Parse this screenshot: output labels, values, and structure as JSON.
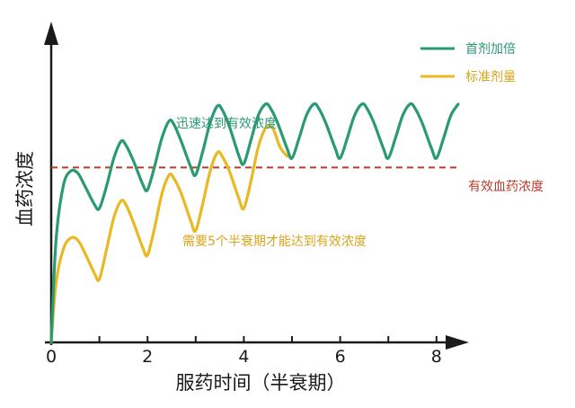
{
  "chart_data": {
    "type": "line",
    "xlabel": "服药时间（半衰期）",
    "ylabel": "血药浓度",
    "xlim": [
      0,
      8.6
    ],
    "ylim": [
      0,
      1.55
    ],
    "x_ticks": [
      0,
      1,
      2,
      3,
      4,
      5,
      6,
      7,
      8
    ],
    "x_tick_labels": [
      "0",
      "",
      "2",
      "",
      "4",
      "",
      "6",
      "",
      "8"
    ],
    "grid": false,
    "legend_position": "top-right",
    "colors": {
      "loading": "#2a9a73",
      "standard": "#e8b923",
      "threshold": "#c0392b"
    },
    "series": [
      {
        "name": "首剂加倍",
        "color": "#2a9a73",
        "x": [
          0,
          0.1,
          0.25,
          0.4,
          0.55,
          0.7,
          0.9,
          1.0,
          1.15,
          1.3,
          1.45,
          1.55,
          1.7,
          1.9,
          2.0,
          2.15,
          2.3,
          2.45,
          2.55,
          2.7,
          2.9,
          3.0,
          3.15,
          3.3,
          3.45,
          3.55,
          3.7,
          3.9,
          4.0,
          4.15,
          4.3,
          4.45,
          4.55,
          4.7,
          4.9,
          5.0,
          5.15,
          5.3,
          5.45,
          5.55,
          5.7,
          5.9,
          6.0,
          6.15,
          6.3,
          6.45,
          6.55,
          6.7,
          6.9,
          7.0,
          7.15,
          7.3,
          7.45,
          7.55,
          7.7,
          7.9,
          8.0,
          8.15,
          8.3,
          8.45
        ],
        "values": [
          0,
          0.55,
          0.84,
          0.92,
          0.91,
          0.84,
          0.74,
          0.72,
          0.84,
          0.99,
          1.08,
          1.06,
          0.98,
          0.85,
          0.82,
          0.95,
          1.1,
          1.19,
          1.17,
          1.08,
          0.94,
          0.9,
          1.03,
          1.18,
          1.27,
          1.25,
          1.16,
          1.0,
          0.96,
          1.09,
          1.22,
          1.28,
          1.26,
          1.18,
          1.04,
          0.99,
          1.1,
          1.22,
          1.28,
          1.26,
          1.18,
          1.04,
          0.99,
          1.1,
          1.22,
          1.28,
          1.26,
          1.18,
          1.04,
          0.99,
          1.1,
          1.22,
          1.28,
          1.26,
          1.18,
          1.04,
          0.99,
          1.1,
          1.22,
          1.28
        ]
      },
      {
        "name": "标准剂量",
        "color": "#e8b923",
        "x": [
          0,
          0.1,
          0.25,
          0.4,
          0.55,
          0.7,
          0.9,
          1.0,
          1.15,
          1.3,
          1.45,
          1.55,
          1.7,
          1.9,
          2.0,
          2.15,
          2.3,
          2.45,
          2.55,
          2.7,
          2.9,
          3.0,
          3.15,
          3.3,
          3.45,
          3.55,
          3.7,
          3.9,
          4.0,
          4.15,
          4.3,
          4.45,
          4.6,
          4.75,
          4.9
        ],
        "values": [
          0,
          0.32,
          0.5,
          0.56,
          0.55,
          0.48,
          0.37,
          0.34,
          0.5,
          0.67,
          0.76,
          0.74,
          0.65,
          0.51,
          0.47,
          0.62,
          0.8,
          0.9,
          0.88,
          0.8,
          0.65,
          0.6,
          0.75,
          0.92,
          1.02,
          1.0,
          0.92,
          0.77,
          0.72,
          0.87,
          1.05,
          1.15,
          1.15,
          1.05,
          1.0
        ]
      }
    ],
    "threshold": {
      "value": 0.94,
      "label": "有效血药浓度"
    },
    "annotations": {
      "fast": "迅速达到有效浓度",
      "slow": "需要5个半衰期才能达到有效浓度"
    }
  }
}
